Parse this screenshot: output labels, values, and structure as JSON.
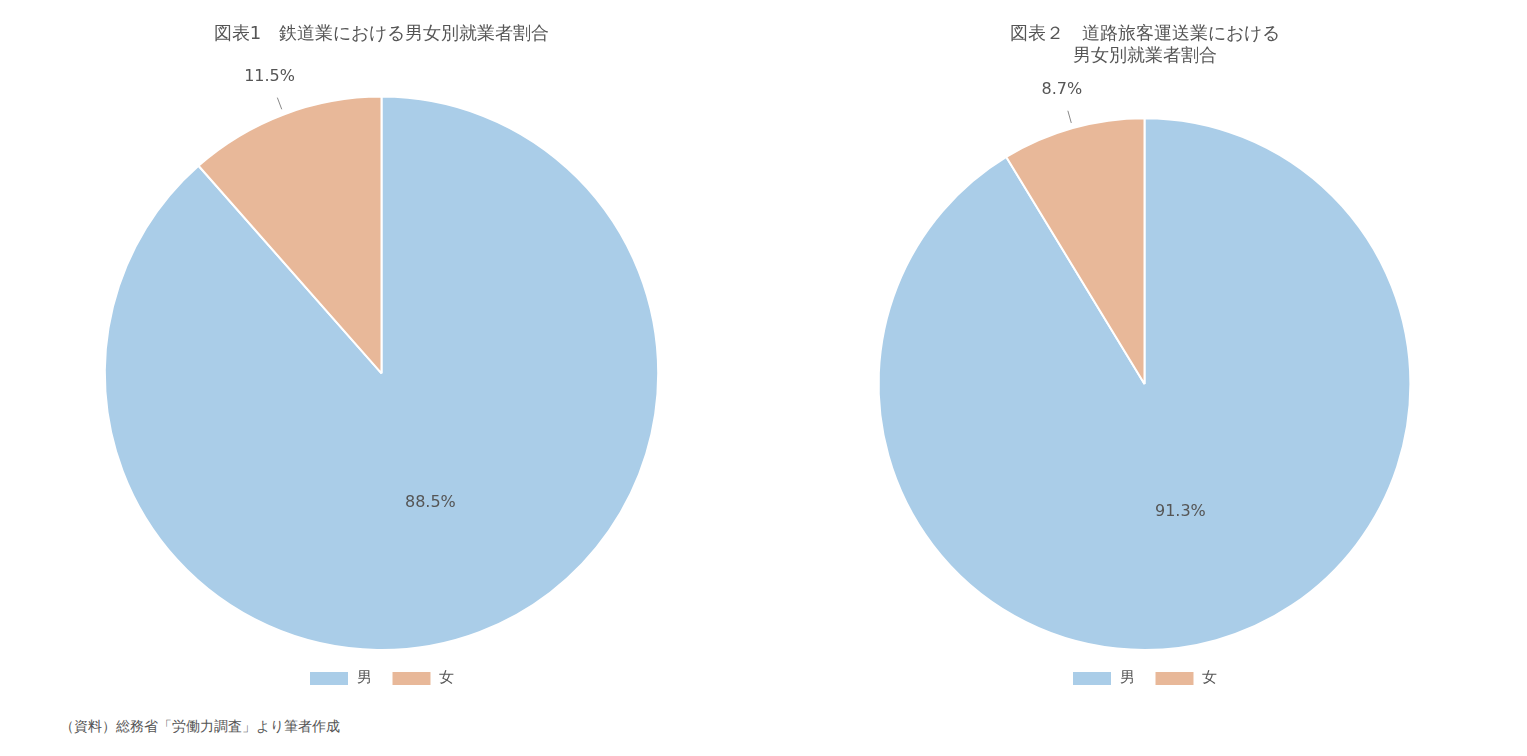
{
  "chart_data": [
    {
      "type": "pie",
      "title": "図表1　鉄道業における男女別就業者割合",
      "categories": [
        "男",
        "女"
      ],
      "values": [
        88.5,
        11.5
      ],
      "value_labels": [
        "88.5%",
        "11.5%"
      ],
      "colors": [
        "#aacde8",
        "#e8b899"
      ],
      "data_labels": true,
      "legend": "bottom",
      "annotations": [
        "（資料）総務省「労働力調査」より筆者作成"
      ]
    },
    {
      "type": "pie",
      "title": [
        "図表２　道路旅客運送業における",
        "男女別就業者割合"
      ],
      "categories": [
        "男",
        "女"
      ],
      "values": [
        91.3,
        8.7
      ],
      "value_labels": [
        "91.3%",
        "8.7%"
      ],
      "colors": [
        "#aacde8",
        "#e8b899"
      ],
      "data_labels": true,
      "legend": "bottom"
    }
  ]
}
